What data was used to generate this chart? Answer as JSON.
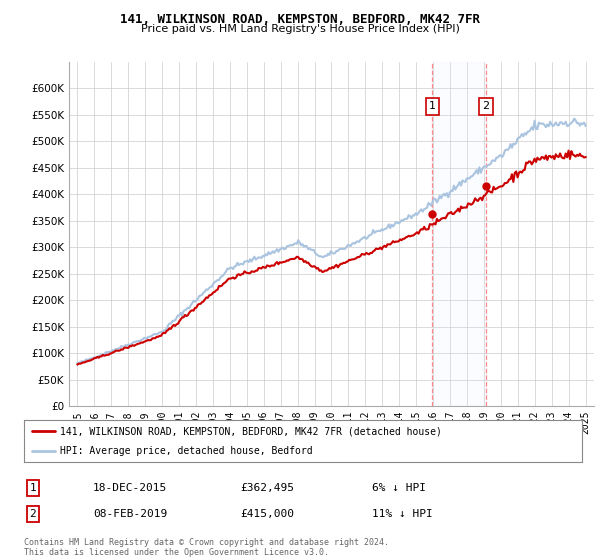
{
  "title": "141, WILKINSON ROAD, KEMPSTON, BEDFORD, MK42 7FR",
  "subtitle": "Price paid vs. HM Land Registry's House Price Index (HPI)",
  "ylabel_ticks": [
    "£0",
    "£50K",
    "£100K",
    "£150K",
    "£200K",
    "£250K",
    "£300K",
    "£350K",
    "£400K",
    "£450K",
    "£500K",
    "£550K",
    "£600K"
  ],
  "ytick_values": [
    0,
    50000,
    100000,
    150000,
    200000,
    250000,
    300000,
    350000,
    400000,
    450000,
    500000,
    550000,
    600000
  ],
  "ylim": [
    0,
    650000
  ],
  "background_color": "#ffffff",
  "plot_bg_color": "#ffffff",
  "grid_color": "#cccccc",
  "purchase1": {
    "date_label": "18-DEC-2015",
    "price": 362495,
    "pct": "6% ↓ HPI",
    "marker_x": 2015.96
  },
  "purchase2": {
    "date_label": "08-FEB-2019",
    "price": 415000,
    "pct": "11% ↓ HPI",
    "marker_x": 2019.1
  },
  "legend_property": "141, WILKINSON ROAD, KEMPSTON, BEDFORD, MK42 7FR (detached house)",
  "legend_hpi": "HPI: Average price, detached house, Bedford",
  "footer": "Contains HM Land Registry data © Crown copyright and database right 2024.\nThis data is licensed under the Open Government Licence v3.0.",
  "hpi_color": "#aac4e0",
  "property_color": "#cc0000",
  "dashed_color": "#ff8888",
  "shade_color": "#ddeeff",
  "xtick_years": [
    1995,
    1996,
    1997,
    1998,
    1999,
    2000,
    2001,
    2002,
    2003,
    2004,
    2005,
    2006,
    2007,
    2008,
    2009,
    2010,
    2011,
    2012,
    2013,
    2014,
    2015,
    2016,
    2017,
    2018,
    2019,
    2020,
    2021,
    2022,
    2023,
    2024,
    2025
  ]
}
